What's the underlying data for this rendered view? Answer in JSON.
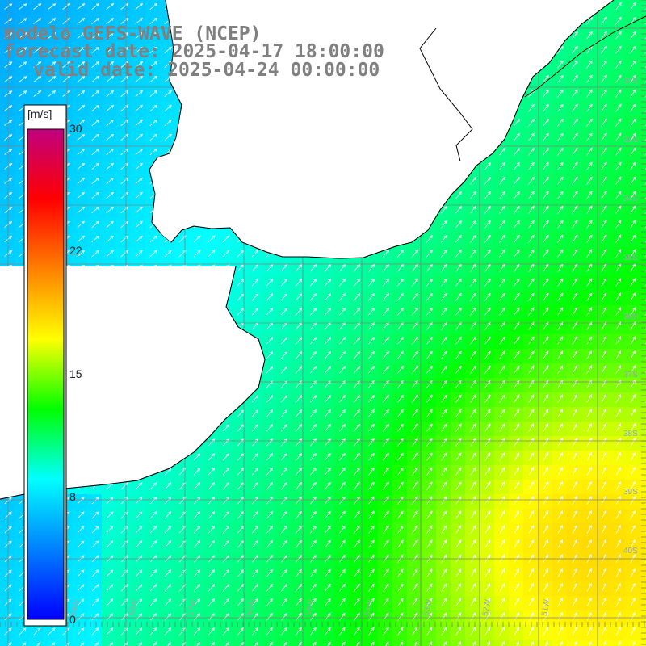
{
  "title": {
    "line1": "modelo GEFS-WAVE (NCEP)",
    "line2": "forecast date: 2025-04-17 18:00:00",
    "line3": "valid date: 2025-04-24 00:00:00"
  },
  "colorbar": {
    "unit": "[m/s]",
    "ticks": [
      "30",
      "22",
      "15",
      "8",
      "0"
    ],
    "tick_values": [
      30,
      22,
      15,
      8,
      0
    ],
    "range": [
      0,
      30
    ],
    "colors": [
      "#0000ff",
      "#0080ff",
      "#00ffff",
      "#00ff00",
      "#ffff00",
      "#ff8000",
      "#ff0000",
      "#c00080"
    ]
  },
  "lat_labels": [
    "33S",
    "33S",
    "34S",
    "35S",
    "36S",
    "37S",
    "38S",
    "39S",
    "40S"
  ],
  "lon_labels": [
    "59W",
    "58W",
    "57W",
    "56W",
    "55W",
    "54W",
    "53W",
    "52W",
    "51W"
  ],
  "colors": {
    "land": "#ffffff",
    "coast": "#000000",
    "grid": "#808080",
    "arrow": "#ffffff",
    "title": "#808080"
  }
}
